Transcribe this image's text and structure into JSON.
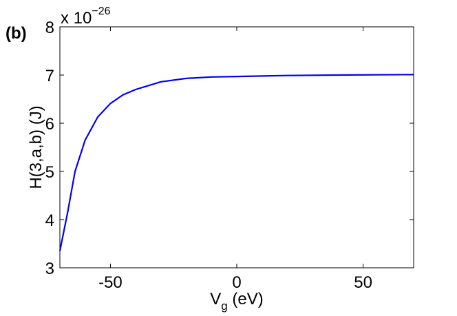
{
  "chart_data": {
    "type": "line",
    "panel_label": "(b)",
    "ylabel": "H(3,a,b) (J)",
    "xlabel": {
      "main": "V",
      "subscript": "g",
      "rest": " (eV)"
    },
    "y_multiplier": {
      "base": "x 10",
      "exponent": "−26"
    },
    "x": [
      -70,
      -67,
      -64,
      -60,
      -55,
      -50,
      -45,
      -40,
      -30,
      -20,
      -10,
      0,
      20,
      40,
      70
    ],
    "series": [
      {
        "color": "#0000ee",
        "values": [
          3.35,
          4.13,
          5.0,
          5.65,
          6.13,
          6.41,
          6.59,
          6.7,
          6.86,
          6.93,
          6.96,
          6.97,
          6.99,
          7.0,
          7.01
        ]
      }
    ],
    "xlim": [
      -70,
      70
    ],
    "ylim": [
      3,
      8
    ],
    "xticks": [
      -50,
      0,
      50
    ],
    "yticks": [
      3,
      4,
      5,
      6,
      7,
      8
    ],
    "grid": false
  }
}
